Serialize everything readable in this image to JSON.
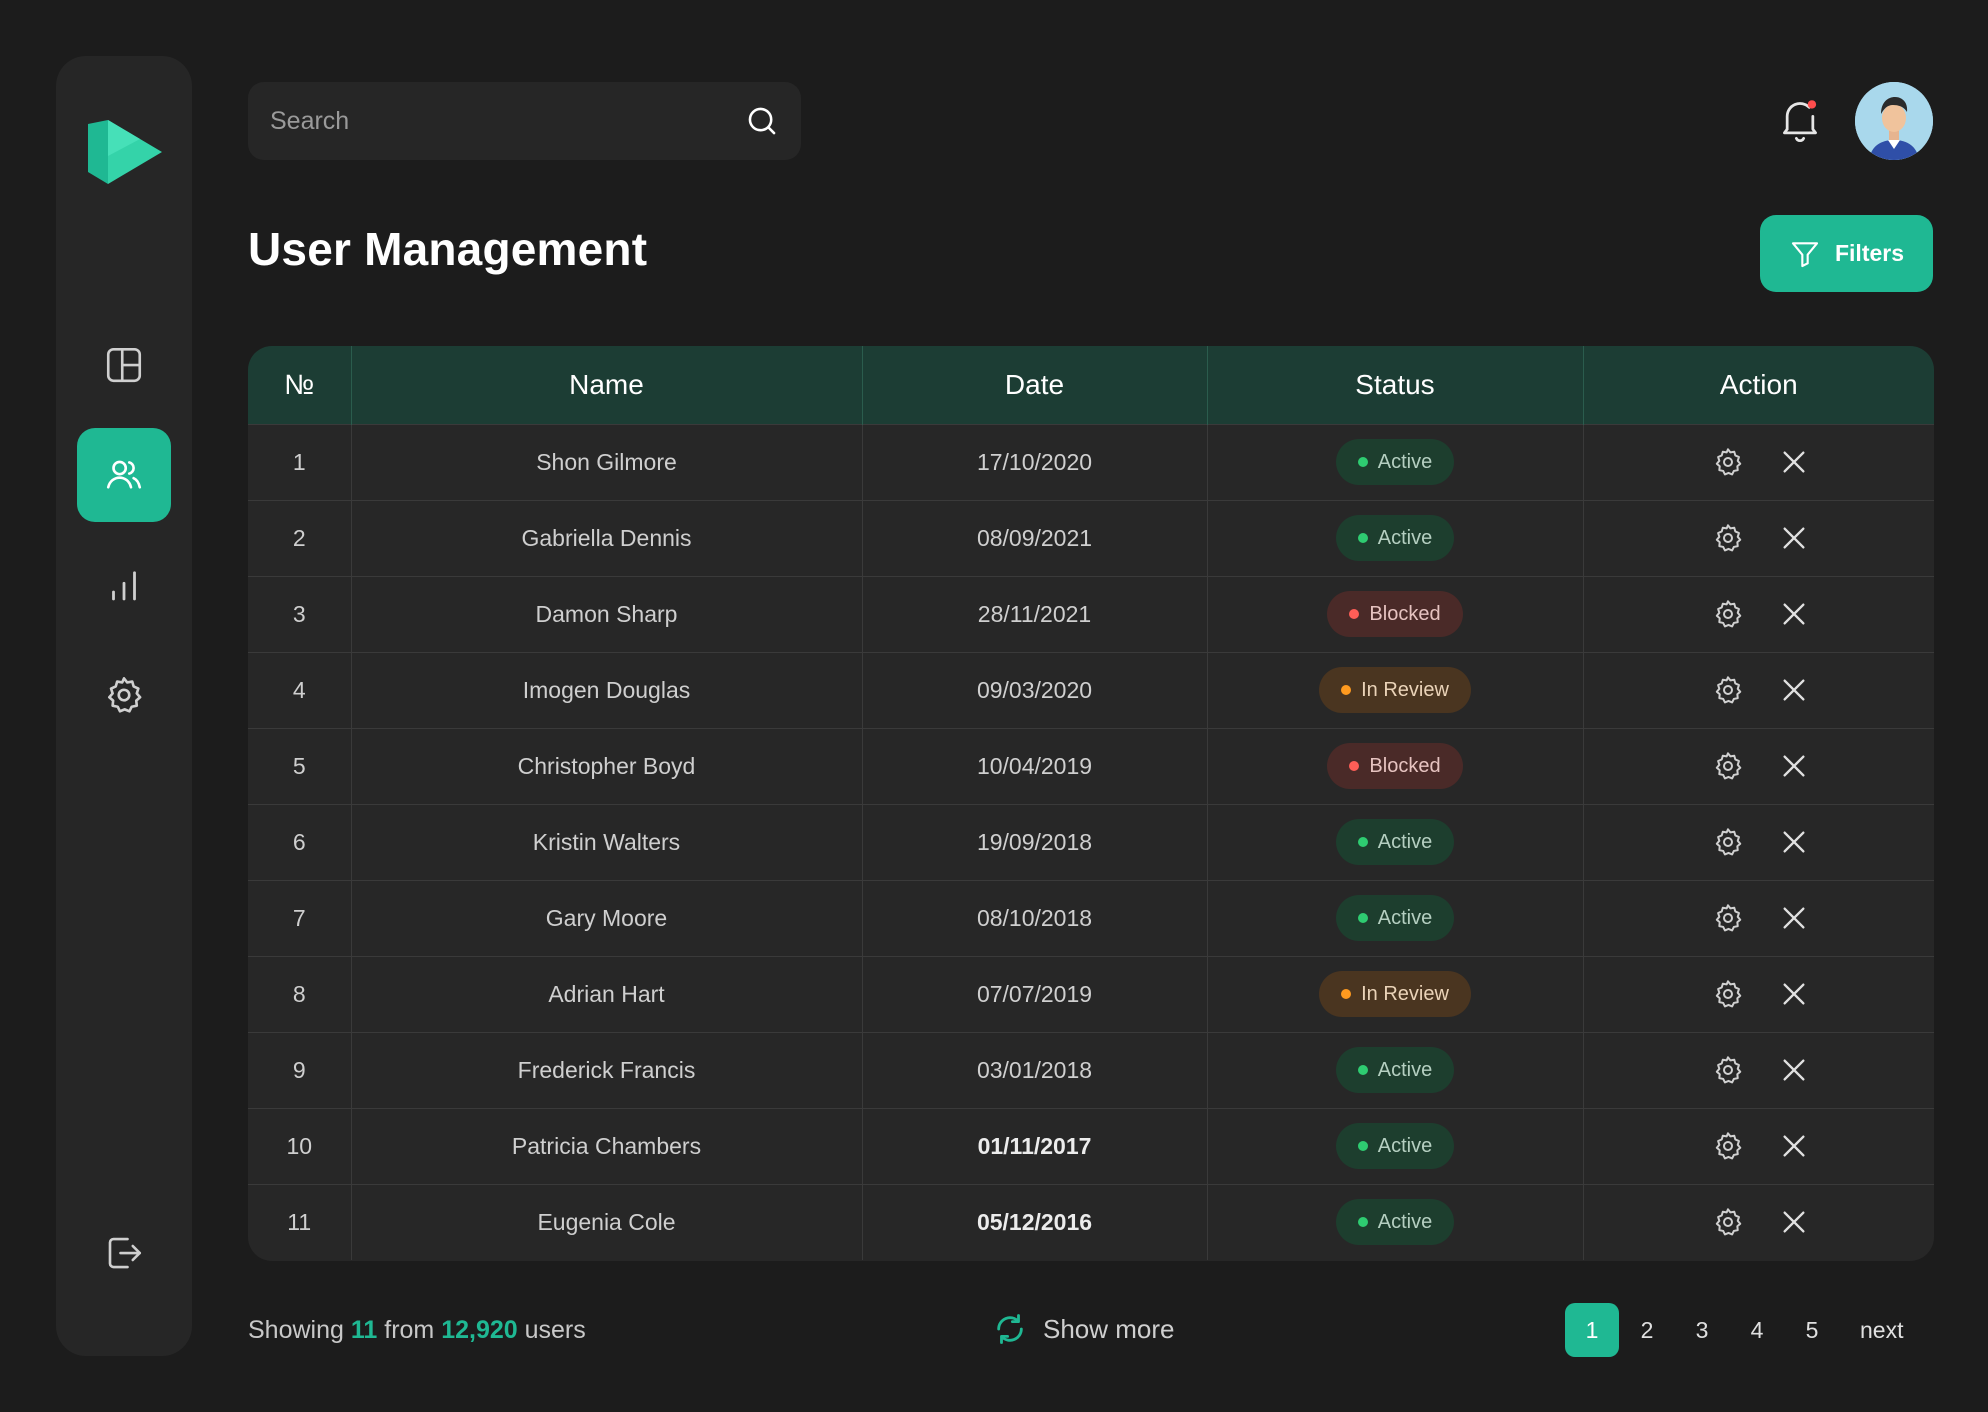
{
  "colors": {
    "accent": "#1fb893",
    "background": "#1c1c1c",
    "panel": "#262626",
    "table_header": "#1c3d34"
  },
  "sidebar": {
    "items": [
      {
        "icon": "layout-icon",
        "active": false
      },
      {
        "icon": "users-icon",
        "active": true
      },
      {
        "icon": "bar-chart-icon",
        "active": false
      },
      {
        "icon": "gear-icon",
        "active": false
      }
    ],
    "logout_icon": "logout-icon"
  },
  "header": {
    "search_placeholder": "Search"
  },
  "page": {
    "title": "User Management",
    "filters_label": "Filters"
  },
  "table": {
    "columns": [
      "№",
      "Name",
      "Date",
      "Status",
      "Action"
    ],
    "rows": [
      {
        "no": "1",
        "name": "Shon Gilmore",
        "date": "17/10/2020",
        "status": "Active"
      },
      {
        "no": "2",
        "name": "Gabriella Dennis",
        "date": "08/09/2021",
        "status": "Active"
      },
      {
        "no": "3",
        "name": "Damon Sharp",
        "date": "28/11/2021",
        "status": "Blocked"
      },
      {
        "no": "4",
        "name": "Imogen Douglas",
        "date": "09/03/2020",
        "status": "In Review"
      },
      {
        "no": "5",
        "name": "Christopher Boyd",
        "date": "10/04/2019",
        "status": "Blocked"
      },
      {
        "no": "6",
        "name": "Kristin Walters",
        "date": "19/09/2018",
        "status": "Active"
      },
      {
        "no": "7",
        "name": "Gary Moore",
        "date": "08/10/2018",
        "status": "Active"
      },
      {
        "no": "8",
        "name": "Adrian Hart",
        "date": "07/07/2019",
        "status": "In Review"
      },
      {
        "no": "9",
        "name": "Frederick Francis",
        "date": "03/01/2018",
        "status": "Active"
      },
      {
        "no": "10",
        "name": "Patricia Chambers",
        "date": "01/11/2017",
        "status": "Active"
      },
      {
        "no": "11",
        "name": "Eugenia Cole",
        "date": "05/12/2016",
        "status": "Active"
      }
    ]
  },
  "footer": {
    "showing_prefix": "Showing",
    "showing_count": "11",
    "showing_from": "from",
    "showing_total": "12,920",
    "showing_suffix": "users",
    "show_more_label": "Show more",
    "pages": [
      "1",
      "2",
      "3",
      "4",
      "5"
    ],
    "current_page": "1",
    "next_label": "next"
  }
}
